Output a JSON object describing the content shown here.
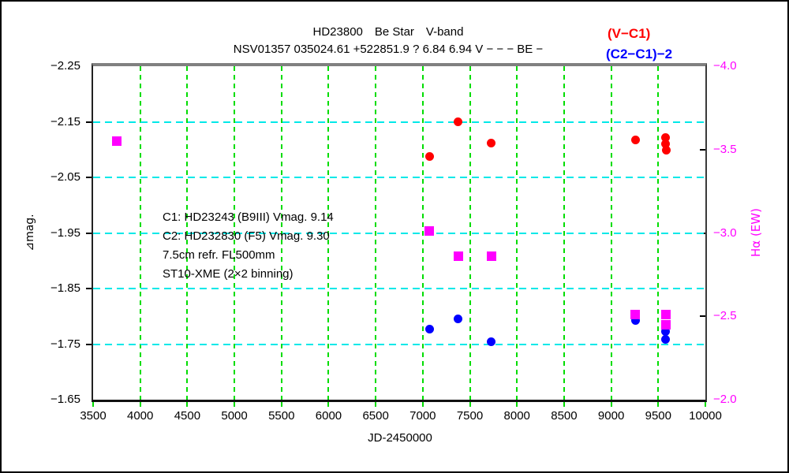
{
  "chart_data": {
    "type": "scatter",
    "title": "HD23800　Be Star　V-band",
    "subtitle": "NSV01357 035024.61 +522851.9 ? 6.84 6.94 V − − − BE −",
    "legend": [
      {
        "label": "(V−C1)",
        "color": "#ff0000"
      },
      {
        "label": "(C2−C1)−2",
        "color": "#0000ff"
      }
    ],
    "annotation_lines": [
      "C1: HD23243 (B9III) Vmag. 9.14",
      "C2: HD232830 (F5) Vmag. 9.30",
      "7.5cm refr. FL500mm",
      "ST10-XME (2×2 binning)"
    ],
    "x_axis": {
      "label": "JD-2450000",
      "min": 3500,
      "max": 10000,
      "tick_step": 500,
      "ticks": [
        3500,
        4000,
        4500,
        5000,
        5500,
        6000,
        6500,
        7000,
        7500,
        8000,
        8500,
        9000,
        9500,
        10000
      ],
      "tick_labels": [
        "3500",
        "4000",
        "4500",
        "5000",
        "5500",
        "6000",
        "6500",
        "7000",
        "7500",
        "8000",
        "8500",
        "9000",
        "9500",
        "10000"
      ]
    },
    "y_left": {
      "label": "⊿mag.",
      "top": -2.25,
      "bottom": -1.65,
      "ticks": [
        -2.25,
        -2.15,
        -2.05,
        -1.95,
        -1.85,
        -1.75,
        -1.65
      ],
      "tick_labels": [
        "−2.25",
        "−2.15",
        "−2.05",
        "−1.95",
        "−1.85",
        "−1.75",
        "−1.65"
      ],
      "color": "#000000"
    },
    "y_right": {
      "label": "Hα (EW)",
      "top": -4.0,
      "bottom": -2.0,
      "ticks": [
        -4.0,
        -3.5,
        -3.0,
        -2.5,
        -2.0
      ],
      "tick_labels": [
        "−4.0",
        "−3.5",
        "−3.0",
        "−2.5",
        "−2.0"
      ],
      "color": "#ff00ff"
    },
    "gridlines": {
      "vertical_x": [
        4000,
        4500,
        5000,
        5500,
        6000,
        6500,
        7000,
        7500,
        8000,
        8500,
        9000,
        9500
      ],
      "horizontal_left_y": [
        -2.15,
        -2.05,
        -1.95,
        -1.85,
        -1.75
      ],
      "vertical_color": "#00dd00",
      "horizontal_color": "#00e8e8"
    },
    "series": [
      {
        "name": "(V-C1)",
        "axis": "left",
        "marker": "circle",
        "size": 11,
        "z": 4,
        "color": "#ff0000",
        "points": [
          [
            7070,
            -2.088
          ],
          [
            7377,
            -2.15
          ],
          [
            7727,
            -2.111
          ],
          [
            9255,
            -2.118
          ],
          [
            9578,
            -2.122
          ],
          [
            9580,
            -2.11
          ],
          [
            9582,
            -2.099
          ]
        ]
      },
      {
        "name": "(C2-C1)-2",
        "axis": "left",
        "marker": "circle",
        "size": 11,
        "z": 2,
        "color": "#0000ff",
        "points": [
          [
            7070,
            -1.777
          ],
          [
            7377,
            -1.796
          ],
          [
            7727,
            -1.754
          ],
          [
            9255,
            -1.792
          ],
          [
            9579,
            -1.773
          ],
          [
            9581,
            -1.759
          ]
        ]
      },
      {
        "name": "Halpha EW",
        "axis": "right",
        "marker": "square",
        "size": 12,
        "z": 3,
        "color": "#ff00ff",
        "points": [
          [
            3750,
            -3.55
          ],
          [
            7070,
            -3.01
          ],
          [
            7377,
            -2.86
          ],
          [
            7726,
            -2.86
          ],
          [
            9255,
            -2.51
          ],
          [
            9578,
            -2.51
          ],
          [
            9580,
            -2.45
          ]
        ]
      }
    ],
    "frame_colors": {
      "top": "#808080",
      "sides": "#222222"
    }
  }
}
